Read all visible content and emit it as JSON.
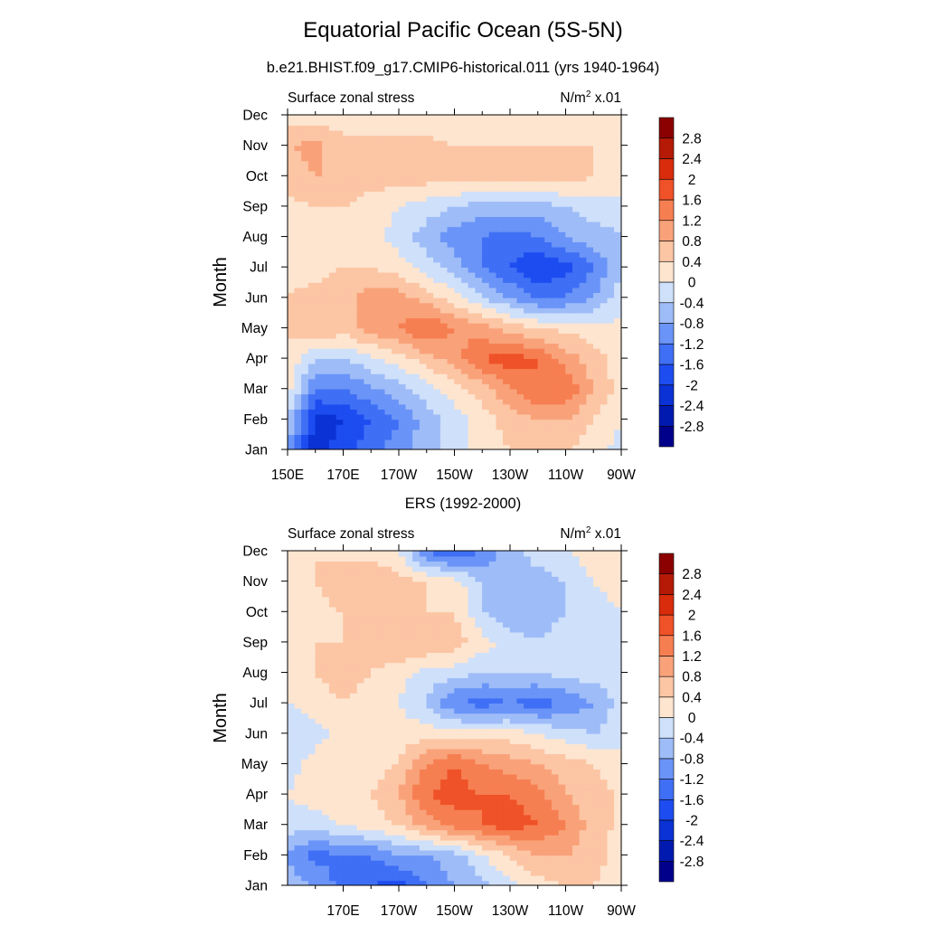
{
  "title": "Equatorial Pacific Ocean (5S-5N)",
  "subtitle": "b.e21.BHIST.f09_g17.CMIP6-historical.011 (yrs 1940-1964)",
  "colorbar": {
    "levels": [
      -2.8,
      -2.4,
      -2.0,
      -1.6,
      -1.2,
      -0.8,
      -0.4,
      0,
      0.4,
      0.8,
      1.2,
      1.6,
      2.0,
      2.4,
      2.8
    ],
    "labels": [
      "-2.8",
      "-2.4",
      "-2",
      "-1.6",
      "-1.2",
      "-0.8",
      "-0.4",
      "0",
      "0.4",
      "0.8",
      "1.2",
      "1.6",
      "2",
      "2.4",
      "2.8"
    ],
    "colors": [
      "#00008b",
      "#001ab0",
      "#0a32d4",
      "#1d4df0",
      "#3f6ff5",
      "#6a94f7",
      "#9ebcf8",
      "#cfe0fa",
      "#fde5d0",
      "#fcc5a4",
      "#f9a27a",
      "#f67f52",
      "#ef5228",
      "#d82c0c",
      "#b51a06",
      "#8b0000"
    ]
  },
  "chart_data": [
    {
      "type": "heatmap",
      "title": "",
      "left_label": "Surface zonal stress",
      "unit_base": "N/m",
      "unit_sup": "2",
      "unit_suffix": " x.01",
      "xlabel": "",
      "ylabel": "Month",
      "x": [
        150,
        160,
        170,
        180,
        190,
        200,
        210,
        220,
        230,
        240,
        250,
        260,
        270
      ],
      "x_ticks": [
        150,
        170,
        190,
        210,
        230,
        250,
        270
      ],
      "x_ticklabels": [
        "150E",
        "170E",
        "170W",
        "150W",
        "130W",
        "110W",
        "90W"
      ],
      "y_ticklabels": [
        "Jan",
        "Feb",
        "Mar",
        "Apr",
        "May",
        "Jun",
        "Jul",
        "Aug",
        "Sep",
        "Oct",
        "Nov",
        "Dec"
      ],
      "xlim": [
        150,
        270
      ],
      "values": [
        [
          -0.8,
          -2.2,
          -1.8,
          -1.4,
          -1.0,
          -0.6,
          -0.2,
          0.2,
          0.4,
          0.4,
          0.4,
          0.2,
          -0.2
        ],
        [
          -0.4,
          -2.2,
          -2.0,
          -1.6,
          -1.2,
          -0.6,
          -0.2,
          0.2,
          0.6,
          0.8,
          0.8,
          0.4,
          0.0
        ],
        [
          0.2,
          -1.2,
          -1.2,
          -0.9,
          -0.6,
          -0.2,
          0.2,
          0.6,
          1.2,
          1.6,
          1.6,
          0.8,
          0.2
        ],
        [
          0.4,
          -0.4,
          -0.4,
          -0.1,
          0.2,
          0.6,
          1.0,
          1.6,
          1.8,
          1.6,
          1.0,
          0.6,
          0.2
        ],
        [
          0.4,
          0.8,
          0.6,
          1.0,
          1.2,
          1.6,
          1.2,
          1.0,
          0.6,
          0.4,
          0.3,
          0.2,
          0.1
        ],
        [
          0.4,
          0.5,
          0.6,
          1.0,
          1.0,
          0.6,
          0.2,
          -0.4,
          -0.8,
          -1.2,
          -1.2,
          -0.8,
          -0.2
        ],
        [
          0.3,
          0.3,
          0.4,
          0.4,
          0.2,
          -0.2,
          -0.6,
          -1.2,
          -1.6,
          -2.0,
          -1.8,
          -1.2,
          -0.4
        ],
        [
          0.3,
          0.2,
          0.2,
          0.2,
          -0.2,
          -0.6,
          -1.0,
          -1.2,
          -1.4,
          -1.2,
          -0.8,
          -0.6,
          -0.4
        ],
        [
          0.3,
          0.4,
          0.4,
          0.2,
          0.0,
          -0.2,
          -0.4,
          -0.6,
          -0.6,
          -0.6,
          -0.4,
          -0.2,
          -0.2
        ],
        [
          0.6,
          0.8,
          0.8,
          0.6,
          0.6,
          0.6,
          0.6,
          0.6,
          0.6,
          0.6,
          0.6,
          0.4,
          0.4
        ],
        [
          0.8,
          0.9,
          0.6,
          0.6,
          0.6,
          0.5,
          0.4,
          0.4,
          0.4,
          0.4,
          0.4,
          0.4,
          0.3
        ],
        [
          0.2,
          0.2,
          0.1,
          0.0,
          0.1,
          0.2,
          0.2,
          0.2,
          0.2,
          0.2,
          0.3,
          0.4,
          0.2
        ]
      ]
    },
    {
      "type": "heatmap",
      "title": "ERS (1992-2000)",
      "left_label": "Surface zonal stress",
      "unit_base": "N/m",
      "unit_sup": "2",
      "unit_suffix": " x.01",
      "xlabel": "",
      "ylabel": "Month",
      "x": [
        150,
        160,
        170,
        180,
        190,
        200,
        210,
        220,
        230,
        240,
        250,
        260,
        270
      ],
      "x_ticks": [
        170,
        190,
        210,
        230,
        250,
        270
      ],
      "x_ticklabels": [
        "170E",
        "170W",
        "150W",
        "130W",
        "110W",
        "90W"
      ],
      "y_ticklabels": [
        "Jan",
        "Feb",
        "Mar",
        "Apr",
        "May",
        "Jun",
        "Jul",
        "Aug",
        "Sep",
        "Oct",
        "Nov",
        "Dec"
      ],
      "xlim": [
        150,
        270
      ],
      "values": [
        [
          -0.6,
          -0.8,
          -1.4,
          -1.6,
          -1.8,
          -1.2,
          -0.8,
          -0.6,
          -0.2,
          0.2,
          0.4,
          0.4,
          0.2
        ],
        [
          -0.8,
          -1.4,
          -1.2,
          -1.2,
          -0.8,
          -0.8,
          -0.6,
          0.0,
          0.4,
          0.8,
          0.8,
          0.6,
          0.2
        ],
        [
          -0.2,
          -0.2,
          0.0,
          0.2,
          0.4,
          1.0,
          1.4,
          1.6,
          1.8,
          1.6,
          1.2,
          0.6,
          0.3
        ],
        [
          0.0,
          0.2,
          0.4,
          0.4,
          0.8,
          1.6,
          1.8,
          1.6,
          1.6,
          1.4,
          0.8,
          0.6,
          0.3
        ],
        [
          -0.2,
          0.2,
          0.4,
          0.2,
          0.4,
          1.2,
          1.6,
          1.2,
          1.0,
          0.8,
          0.6,
          0.4,
          0.2
        ],
        [
          -0.4,
          -0.2,
          0.2,
          0.2,
          0.2,
          0.2,
          0.2,
          0.2,
          0.2,
          0.0,
          -0.2,
          -0.4,
          -0.2
        ],
        [
          0.0,
          0.2,
          0.4,
          0.2,
          0.0,
          -0.4,
          -1.2,
          -1.4,
          -1.2,
          -1.4,
          -1.2,
          -0.8,
          -0.2
        ],
        [
          0.2,
          0.4,
          0.6,
          0.4,
          0.2,
          -0.2,
          -0.2,
          -0.4,
          -0.4,
          -0.4,
          -0.2,
          -0.2,
          -0.2
        ],
        [
          0.2,
          0.4,
          0.4,
          0.6,
          0.8,
          0.8,
          0.6,
          0.2,
          -0.2,
          -0.4,
          -0.2,
          -0.2,
          0.0
        ],
        [
          0.4,
          0.2,
          0.4,
          0.6,
          0.6,
          0.4,
          0.4,
          -0.4,
          -0.8,
          -0.6,
          -0.4,
          -0.2,
          0.0
        ],
        [
          0.2,
          0.4,
          0.8,
          0.8,
          0.6,
          0.4,
          0.2,
          -0.4,
          -0.6,
          -0.6,
          -0.4,
          0.0,
          0.2
        ],
        [
          0.0,
          0.4,
          0.2,
          0.2,
          0.0,
          -1.2,
          -1.6,
          -1.2,
          -0.6,
          -0.2,
          0.0,
          0.2,
          0.2
        ]
      ]
    }
  ]
}
